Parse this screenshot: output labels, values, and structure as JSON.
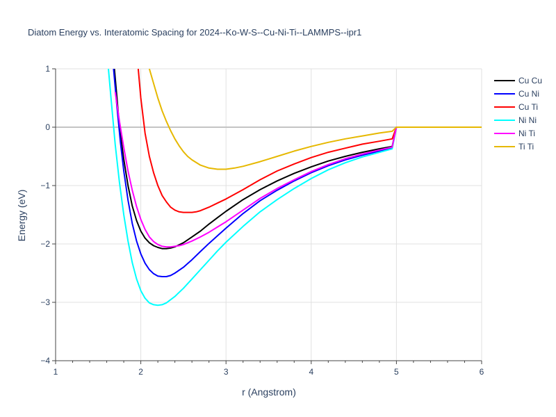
{
  "chart_data": {
    "type": "line",
    "title": "Diatom Energy vs. Interatomic Spacing for 2024--Ko-W-S--Cu-Ni-Ti--LAMMPS--ipr1",
    "xlabel": "r (Angstrom)",
    "ylabel": "Energy (eV)",
    "xlim": [
      1,
      6
    ],
    "ylim": [
      -4,
      1
    ],
    "xticks": [
      1,
      2,
      3,
      4,
      5,
      6
    ],
    "yticks": [
      -4,
      -3,
      -2,
      -1,
      0,
      1
    ],
    "grid": true,
    "legend_position": "top-right",
    "series": [
      {
        "name": "Cu Cu",
        "color": "#000000",
        "x": [
          1.69,
          1.72,
          1.75,
          1.8,
          1.85,
          1.9,
          1.95,
          2.0,
          2.05,
          2.1,
          2.15,
          2.2,
          2.25,
          2.3,
          2.35,
          2.4,
          2.5,
          2.6,
          2.7,
          2.8,
          2.9,
          3.0,
          3.2,
          3.4,
          3.6,
          3.8,
          4.0,
          4.2,
          4.4,
          4.6,
          4.8,
          4.95,
          5.0,
          6.0
        ],
        "y": [
          1.0,
          0.5,
          0.0,
          -0.55,
          -1.0,
          -1.35,
          -1.6,
          -1.78,
          -1.9,
          -1.98,
          -2.03,
          -2.06,
          -2.08,
          -2.08,
          -2.07,
          -2.05,
          -1.98,
          -1.88,
          -1.78,
          -1.66,
          -1.55,
          -1.44,
          -1.24,
          -1.07,
          -0.92,
          -0.79,
          -0.68,
          -0.58,
          -0.5,
          -0.43,
          -0.37,
          -0.33,
          0.0,
          0.0
        ]
      },
      {
        "name": "Cu Ni",
        "color": "#0000ff",
        "x": [
          1.68,
          1.72,
          1.76,
          1.8,
          1.85,
          1.9,
          1.95,
          2.0,
          2.05,
          2.1,
          2.15,
          2.2,
          2.25,
          2.3,
          2.35,
          2.4,
          2.5,
          2.6,
          2.7,
          2.8,
          2.9,
          3.0,
          3.2,
          3.4,
          3.6,
          3.8,
          4.0,
          4.2,
          4.4,
          4.6,
          4.8,
          4.95,
          5.0,
          6.0
        ],
        "y": [
          1.0,
          0.35,
          -0.25,
          -0.75,
          -1.25,
          -1.65,
          -1.95,
          -2.17,
          -2.33,
          -2.44,
          -2.51,
          -2.55,
          -2.56,
          -2.56,
          -2.54,
          -2.5,
          -2.4,
          -2.27,
          -2.13,
          -1.99,
          -1.86,
          -1.73,
          -1.48,
          -1.26,
          -1.08,
          -0.92,
          -0.78,
          -0.66,
          -0.56,
          -0.48,
          -0.41,
          -0.35,
          0.0,
          0.0
        ]
      },
      {
        "name": "Cu Ti",
        "color": "#ff0000",
        "x": [
          1.97,
          2.0,
          2.05,
          2.1,
          2.15,
          2.2,
          2.25,
          2.3,
          2.35,
          2.4,
          2.45,
          2.5,
          2.55,
          2.6,
          2.65,
          2.7,
          2.8,
          2.9,
          3.0,
          3.2,
          3.4,
          3.6,
          3.8,
          4.0,
          4.2,
          4.4,
          4.6,
          4.8,
          4.95,
          5.0,
          6.0
        ],
        "y": [
          1.0,
          0.5,
          -0.1,
          -0.5,
          -0.78,
          -1.0,
          -1.17,
          -1.28,
          -1.37,
          -1.42,
          -1.45,
          -1.46,
          -1.46,
          -1.46,
          -1.45,
          -1.43,
          -1.37,
          -1.3,
          -1.23,
          -1.07,
          -0.9,
          -0.75,
          -0.63,
          -0.52,
          -0.43,
          -0.36,
          -0.29,
          -0.24,
          -0.2,
          0.0,
          0.0
        ]
      },
      {
        "name": "Ni Ni",
        "color": "#00ffff",
        "x": [
          1.62,
          1.65,
          1.7,
          1.75,
          1.8,
          1.85,
          1.9,
          1.95,
          2.0,
          2.05,
          2.1,
          2.15,
          2.2,
          2.25,
          2.3,
          2.4,
          2.5,
          2.6,
          2.7,
          2.8,
          2.9,
          3.0,
          3.2,
          3.4,
          3.6,
          3.8,
          4.0,
          4.2,
          4.4,
          4.6,
          4.8,
          4.95,
          5.0,
          6.0
        ],
        "y": [
          1.0,
          0.5,
          -0.3,
          -0.95,
          -1.5,
          -1.95,
          -2.32,
          -2.6,
          -2.8,
          -2.93,
          -3.01,
          -3.04,
          -3.05,
          -3.04,
          -3.01,
          -2.9,
          -2.76,
          -2.6,
          -2.44,
          -2.28,
          -2.12,
          -1.97,
          -1.7,
          -1.45,
          -1.24,
          -1.05,
          -0.88,
          -0.73,
          -0.61,
          -0.51,
          -0.43,
          -0.37,
          0.0,
          0.0
        ]
      },
      {
        "name": "Ni Ti",
        "color": "#ff00ff",
        "x": [
          1.7,
          1.75,
          1.8,
          1.85,
          1.9,
          1.95,
          2.0,
          2.05,
          2.1,
          2.15,
          2.2,
          2.25,
          2.3,
          2.35,
          2.4,
          2.45,
          2.5,
          2.6,
          2.7,
          2.8,
          2.9,
          3.0,
          3.2,
          3.4,
          3.6,
          3.8,
          4.0,
          4.2,
          4.4,
          4.6,
          4.8,
          4.95,
          5.0,
          6.0
        ],
        "y": [
          0.6,
          0.1,
          -0.35,
          -0.75,
          -1.08,
          -1.36,
          -1.58,
          -1.75,
          -1.88,
          -1.96,
          -2.01,
          -2.04,
          -2.05,
          -2.05,
          -2.04,
          -2.03,
          -2.01,
          -1.95,
          -1.88,
          -1.8,
          -1.71,
          -1.62,
          -1.42,
          -1.22,
          -1.05,
          -0.9,
          -0.76,
          -0.64,
          -0.54,
          -0.46,
          -0.39,
          -0.34,
          0.0,
          0.0
        ]
      },
      {
        "name": "Ti Ti",
        "color": "#e6b800",
        "x": [
          2.1,
          2.15,
          2.2,
          2.25,
          2.3,
          2.35,
          2.4,
          2.45,
          2.5,
          2.55,
          2.6,
          2.7,
          2.8,
          2.9,
          3.0,
          3.1,
          3.2,
          3.4,
          3.6,
          3.8,
          4.0,
          4.2,
          4.4,
          4.6,
          4.8,
          4.95,
          5.0,
          6.0
        ],
        "y": [
          1.0,
          0.75,
          0.5,
          0.28,
          0.1,
          -0.06,
          -0.2,
          -0.32,
          -0.42,
          -0.5,
          -0.56,
          -0.65,
          -0.7,
          -0.72,
          -0.72,
          -0.7,
          -0.67,
          -0.59,
          -0.5,
          -0.41,
          -0.33,
          -0.26,
          -0.2,
          -0.15,
          -0.1,
          -0.07,
          0.0,
          0.0
        ]
      }
    ]
  }
}
